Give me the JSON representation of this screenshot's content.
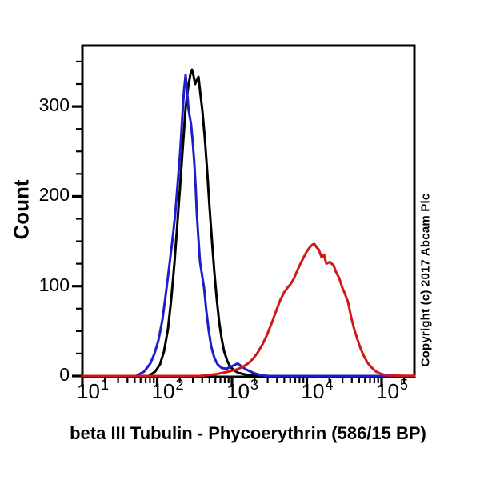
{
  "figure": {
    "y_axis_title": "Count",
    "x_axis_title": "beta III Tubulin - Phycoerythrin (586/15 BP)",
    "copyright_notice": "Copyright (c) 2017 Abcam Plc"
  },
  "colors": {
    "background": "#ffffff",
    "axis": "#000000",
    "black_curve": "#000000",
    "blue_curve": "#1e1ec8",
    "red_curve": "#d01818"
  },
  "chart_data": {
    "type": "line",
    "subtype": "flow-cytometry-histogram-overlay",
    "title": "",
    "xlabel": "beta III Tubulin - Phycoerythrin (586/15 BP)",
    "ylabel": "Count",
    "grid": false,
    "legend": "none",
    "x_axis": {
      "scale": "log10",
      "tick_base": "10",
      "tick_exponents": [
        1,
        2,
        3,
        4,
        5
      ],
      "range": [
        10,
        274000
      ]
    },
    "y_axis": {
      "scale": "linear",
      "ticks": [
        0,
        100,
        200,
        300
      ],
      "minor_tick_step": 25,
      "range": [
        0,
        369
      ]
    },
    "series": [
      {
        "name": "black-histogram",
        "color": "#000000",
        "peak": {
          "x": 292,
          "count": 341
        },
        "points": [
          [
            10,
            0
          ],
          [
            77,
            0
          ],
          [
            94,
            5
          ],
          [
            109,
            13
          ],
          [
            123,
            27
          ],
          [
            139,
            52
          ],
          [
            154,
            85
          ],
          [
            170,
            125
          ],
          [
            187,
            172
          ],
          [
            207,
            222
          ],
          [
            223,
            262
          ],
          [
            240,
            298
          ],
          [
            258,
            320
          ],
          [
            278,
            336
          ],
          [
            292,
            341
          ],
          [
            307,
            334
          ],
          [
            322,
            325
          ],
          [
            338,
            329
          ],
          [
            356,
            333
          ],
          [
            373,
            318
          ],
          [
            402,
            295
          ],
          [
            433,
            265
          ],
          [
            466,
            228
          ],
          [
            501,
            188
          ],
          [
            540,
            150
          ],
          [
            582,
            115
          ],
          [
            627,
            85
          ],
          [
            675,
            60
          ],
          [
            726,
            42
          ],
          [
            782,
            28
          ],
          [
            863,
            17
          ],
          [
            952,
            10
          ],
          [
            1080,
            6
          ],
          [
            1220,
            3.5
          ],
          [
            1450,
            2
          ],
          [
            1720,
            1
          ],
          [
            2090,
            0
          ],
          [
            274000,
            0
          ]
        ]
      },
      {
        "name": "blue-histogram",
        "color": "#1e1ec8",
        "peak": {
          "x": 240,
          "count": 335
        },
        "points": [
          [
            10,
            0
          ],
          [
            52,
            0
          ],
          [
            67,
            5
          ],
          [
            81,
            14
          ],
          [
            92,
            25
          ],
          [
            104,
            40
          ],
          [
            117,
            62
          ],
          [
            129,
            88
          ],
          [
            143,
            118
          ],
          [
            158,
            148
          ],
          [
            174,
            180
          ],
          [
            187,
            212
          ],
          [
            202,
            248
          ],
          [
            217,
            290
          ],
          [
            228,
            318
          ],
          [
            240,
            335
          ],
          [
            248,
            322
          ],
          [
            256,
            308
          ],
          [
            262,
            297
          ],
          [
            283,
            281
          ],
          [
            298,
            262
          ],
          [
            314,
            236
          ],
          [
            328,
            208
          ],
          [
            338,
            181
          ],
          [
            356,
            152
          ],
          [
            373,
            127
          ],
          [
            423,
            98
          ],
          [
            455,
            72
          ],
          [
            490,
            50
          ],
          [
            527,
            33
          ],
          [
            582,
            20
          ],
          [
            642,
            13
          ],
          [
            726,
            9
          ],
          [
            841,
            8
          ],
          [
            1000,
            11
          ],
          [
            1190,
            14
          ],
          [
            1380,
            10
          ],
          [
            1560,
            7
          ],
          [
            1990,
            3
          ],
          [
            2430,
            1
          ],
          [
            3030,
            0
          ],
          [
            274000,
            0
          ]
        ]
      },
      {
        "name": "red-histogram",
        "color": "#d01818",
        "peak": {
          "x": 12600,
          "count": 147
        },
        "points": [
          [
            10,
            0
          ],
          [
            370,
            0
          ],
          [
            478,
            1
          ],
          [
            611,
            2
          ],
          [
            744,
            3.5
          ],
          [
            906,
            5
          ],
          [
            1130,
            7
          ],
          [
            1380,
            10
          ],
          [
            1640,
            14
          ],
          [
            1900,
            19
          ],
          [
            2200,
            26
          ],
          [
            2550,
            35
          ],
          [
            2950,
            46
          ],
          [
            3430,
            60
          ],
          [
            3870,
            72
          ],
          [
            4390,
            84
          ],
          [
            4960,
            93
          ],
          [
            5610,
            99
          ],
          [
            6040,
            102
          ],
          [
            6670,
            108
          ],
          [
            7350,
            116
          ],
          [
            8110,
            124
          ],
          [
            8950,
            131
          ],
          [
            9890,
            138
          ],
          [
            10900,
            143
          ],
          [
            11800,
            146
          ],
          [
            12600,
            147
          ],
          [
            13600,
            143
          ],
          [
            14400,
            141
          ],
          [
            15800,
            132
          ],
          [
            17000,
            135
          ],
          [
            18300,
            125
          ],
          [
            20200,
            127
          ],
          [
            22900,
            123
          ],
          [
            24500,
            116
          ],
          [
            27100,
            109
          ],
          [
            29900,
            98
          ],
          [
            32200,
            92
          ],
          [
            35600,
            82
          ],
          [
            39300,
            65
          ],
          [
            43400,
            51
          ],
          [
            47900,
            40
          ],
          [
            52700,
            30
          ],
          [
            58200,
            22
          ],
          [
            65800,
            14
          ],
          [
            74500,
            9
          ],
          [
            84100,
            5
          ],
          [
            97500,
            2.5
          ],
          [
            113000,
            1
          ],
          [
            138000,
            0.5
          ],
          [
            199000,
            0.3
          ],
          [
            274000,
            0.3
          ]
        ]
      }
    ]
  }
}
